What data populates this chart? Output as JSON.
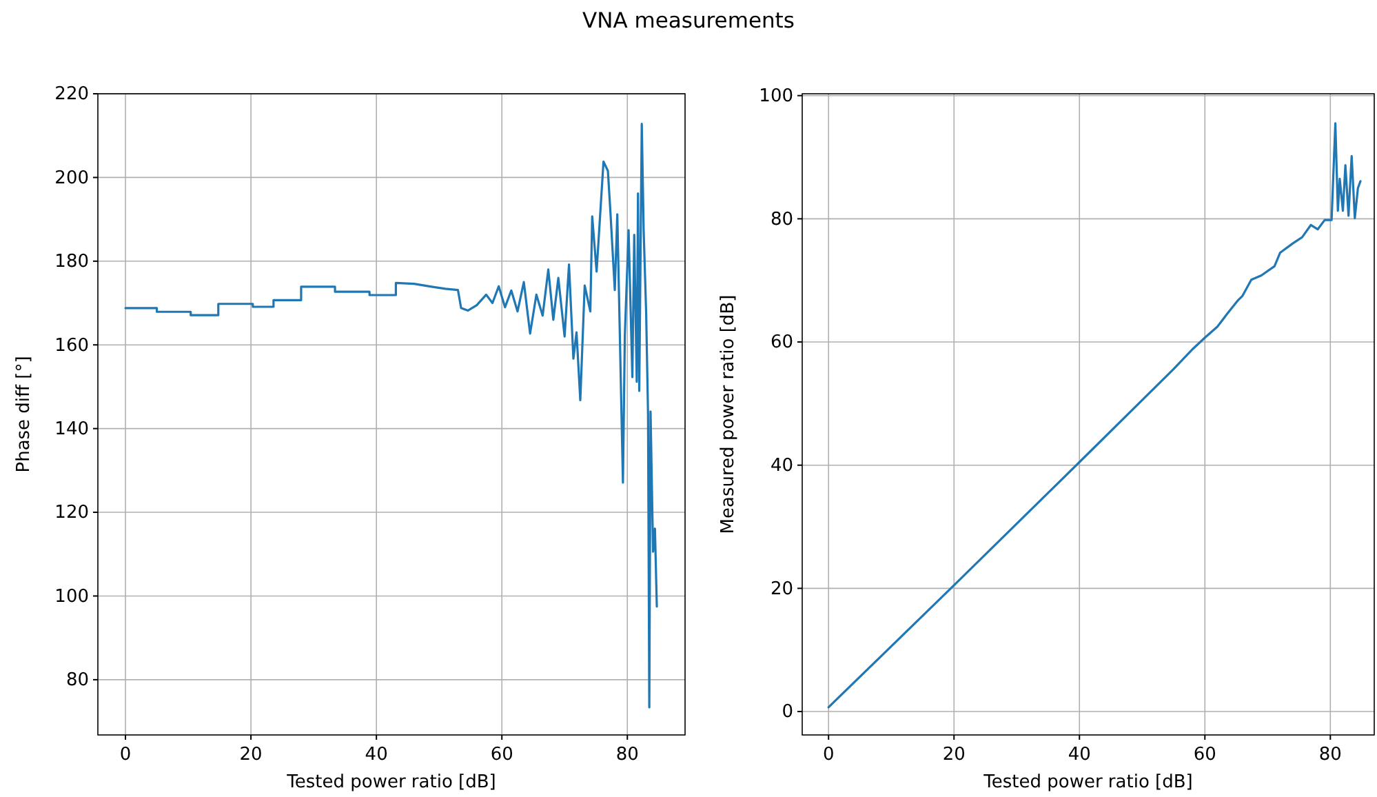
{
  "chart_data": [
    {
      "type": "line",
      "title": "VNA measurements",
      "xlabel": "Tested power ratio [dB]",
      "ylabel": "Phase diff [°]",
      "grid": true,
      "xlim": [
        -4.4,
        89.2
      ],
      "ylim": [
        66.8,
        220
      ],
      "xticks": [
        0,
        20,
        40,
        60,
        80
      ],
      "yticks": [
        80,
        100,
        120,
        140,
        160,
        180,
        200,
        220
      ],
      "x": [
        0,
        5,
        5,
        10.4,
        10.4,
        14.8,
        14.8,
        20.3,
        20.3,
        23.6,
        23.6,
        28,
        28,
        33.4,
        33.4,
        38.9,
        38.9,
        43.1,
        43.1,
        46,
        48.8,
        51,
        53,
        53.5,
        54.6,
        56,
        57.5,
        58.5,
        59.5,
        60.5,
        61.5,
        62.5,
        63.5,
        64.5,
        65.5,
        66.5,
        67.4,
        68.2,
        69,
        70,
        70.7,
        71.4,
        71.9,
        72.5,
        73.2,
        74.1,
        74.4,
        75.1,
        76.2,
        76.9,
        77.3,
        78,
        78.4,
        79.1,
        79.3,
        79.6,
        80.2,
        80.8,
        81.1,
        81.5,
        81.7,
        81.9,
        82.3,
        82.6,
        83,
        83.3,
        83.5,
        83.7,
        84.1,
        84.4,
        84.7
      ],
      "series": [
        {
          "color": "#1f77b4",
          "values": [
            168.8,
            168.8,
            167.9,
            167.9,
            167.1,
            167.1,
            169.8,
            169.8,
            169.1,
            169.1,
            170.7,
            170.7,
            173.9,
            173.9,
            172.7,
            172.7,
            171.9,
            171.9,
            174.8,
            174.6,
            173.9,
            173.4,
            173.1,
            168.8,
            168.2,
            169.5,
            172,
            170,
            174,
            169,
            173,
            168,
            175,
            162.7,
            172,
            167,
            178,
            166,
            176,
            162,
            179.2,
            156.7,
            163,
            146.8,
            174.2,
            168,
            190.7,
            177.5,
            203.8,
            201.6,
            191.8,
            173.1,
            191.2,
            141.3,
            127.1,
            162.2,
            187.4,
            152.3,
            186.3,
            151.2,
            196.2,
            149,
            212.8,
            187.4,
            167.7,
            143.5,
            73.4,
            144.1,
            110.6,
            116.1,
            97.5
          ]
        }
      ]
    },
    {
      "type": "line",
      "xlabel": "Tested power ratio [dB]",
      "ylabel": "Measured power ratio [dB]",
      "grid": true,
      "xlim": [
        -4.2,
        87
      ],
      "ylim": [
        -3.8,
        100.3
      ],
      "xticks": [
        0,
        20,
        40,
        60,
        80
      ],
      "yticks": [
        0,
        20,
        40,
        60,
        80,
        100
      ],
      "x": [
        0,
        20,
        40,
        55,
        58,
        60,
        62,
        63.5,
        65.3,
        66,
        67.4,
        69,
        71.1,
        72,
        74,
        75.5,
        76.9,
        78,
        79.1,
        80.2,
        80.8,
        81.2,
        81.5,
        82,
        82.4,
        82.9,
        83.4,
        83.9,
        84.4,
        84.8
      ],
      "series": [
        {
          "color": "#1f77b4",
          "values": [
            0.7,
            20.5,
            40.5,
            55.6,
            58.8,
            60.7,
            62.5,
            64.5,
            66.8,
            67.5,
            70.1,
            70.8,
            72.3,
            74.5,
            76,
            77,
            79,
            78.3,
            79.8,
            79.8,
            95.5,
            81.3,
            86.5,
            81.3,
            88.7,
            80.5,
            90.2,
            80.1,
            85,
            86.1
          ]
        }
      ]
    }
  ]
}
